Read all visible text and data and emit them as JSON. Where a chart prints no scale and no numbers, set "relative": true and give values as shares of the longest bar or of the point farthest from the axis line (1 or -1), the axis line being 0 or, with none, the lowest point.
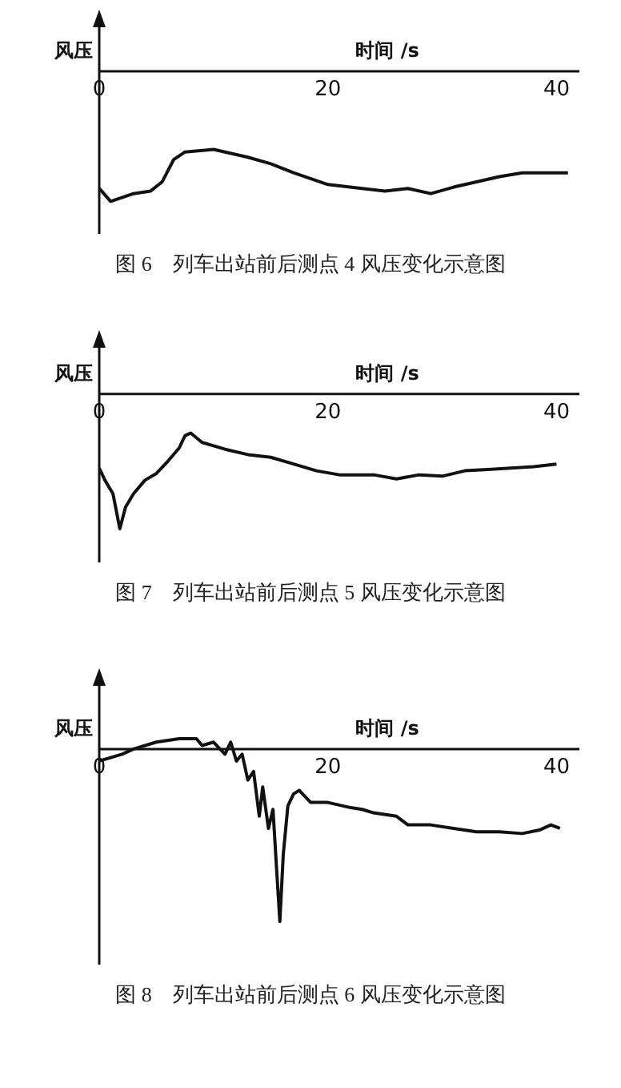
{
  "chart_data": [
    {
      "type": "line",
      "relative": true,
      "xlabel": "时间 /s",
      "ylabel": "风压",
      "xlim": [
        0,
        42
      ],
      "xticks": [
        0,
        20,
        40
      ],
      "grid": false,
      "marker": "none",
      "line_style": "solid",
      "annotations": [
        "图 6　列车出站前后测点 4 风压变化示意图"
      ],
      "series": [
        {
          "color": "#111111",
          "x": [
            0,
            1,
            3,
            4.5,
            5.5,
            6.5,
            7.5,
            10,
            13,
            15,
            17,
            20,
            23,
            25,
            27,
            29,
            31,
            33,
            35,
            37,
            39,
            41
          ],
          "values": [
            -0.9,
            -1,
            -0.94,
            -0.92,
            -0.85,
            -0.68,
            -0.62,
            -0.6,
            -0.66,
            -0.71,
            -0.78,
            -0.87,
            -0.9,
            -0.92,
            -0.9,
            -0.94,
            -0.89,
            -0.85,
            -0.81,
            -0.78,
            -0.78,
            -0.78
          ]
        }
      ]
    },
    {
      "type": "line",
      "relative": true,
      "xlabel": "时间 /s",
      "ylabel": "风压",
      "xlim": [
        0,
        42
      ],
      "xticks": [
        0,
        20,
        40
      ],
      "grid": false,
      "marker": "none",
      "line_style": "solid",
      "annotations": [
        "图 7　列车出站前后测点 5 风压变化示意图"
      ],
      "series": [
        {
          "color": "#111111",
          "x": [
            0,
            0.5,
            1.2,
            1.8,
            2.3,
            3,
            4,
            5,
            6,
            7,
            7.5,
            8,
            9,
            11,
            13,
            15,
            17,
            19,
            21,
            24,
            26,
            28,
            30,
            32,
            34,
            36,
            38,
            40
          ],
          "values": [
            -0.55,
            -0.64,
            -0.74,
            -1,
            -0.84,
            -0.74,
            -0.64,
            -0.59,
            -0.5,
            -0.4,
            -0.31,
            -0.29,
            -0.36,
            -0.41,
            -0.45,
            -0.47,
            -0.52,
            -0.57,
            -0.6,
            -0.6,
            -0.63,
            -0.6,
            -0.61,
            -0.57,
            -0.56,
            -0.55,
            -0.54,
            -0.52
          ]
        }
      ]
    },
    {
      "type": "line",
      "relative": true,
      "xlabel": "时间 /s",
      "ylabel": "风压",
      "xlim": [
        0,
        42
      ],
      "xticks": [
        0,
        20,
        40
      ],
      "grid": false,
      "marker": "none",
      "line_style": "solid",
      "annotations": [
        "图 8　列车出站前后测点 6 风压变化示意图"
      ],
      "series": [
        {
          "color": "#111111",
          "x": [
            0,
            2,
            3,
            5,
            7,
            8.5,
            9,
            10,
            11,
            11.5,
            12,
            12.5,
            13,
            13.5,
            14,
            14.3,
            14.8,
            15.2,
            15.5,
            15.8,
            16.1,
            16.5,
            17,
            17.5,
            18.5,
            20,
            22,
            23,
            24,
            26,
            27,
            29,
            31,
            33,
            35,
            37,
            38.5,
            39.5,
            40.3
          ],
          "values": [
            -0.07,
            -0.03,
            0,
            0.04,
            0.06,
            0.06,
            0.02,
            0.04,
            -0.03,
            0.04,
            -0.07,
            -0.03,
            -0.18,
            -0.13,
            -0.39,
            -0.22,
            -0.46,
            -0.35,
            -0.68,
            -1,
            -0.61,
            -0.33,
            -0.26,
            -0.24,
            -0.31,
            -0.31,
            -0.34,
            -0.35,
            -0.37,
            -0.39,
            -0.44,
            -0.44,
            -0.46,
            -0.48,
            -0.48,
            -0.49,
            -0.47,
            -0.44,
            -0.46
          ]
        }
      ]
    }
  ]
}
